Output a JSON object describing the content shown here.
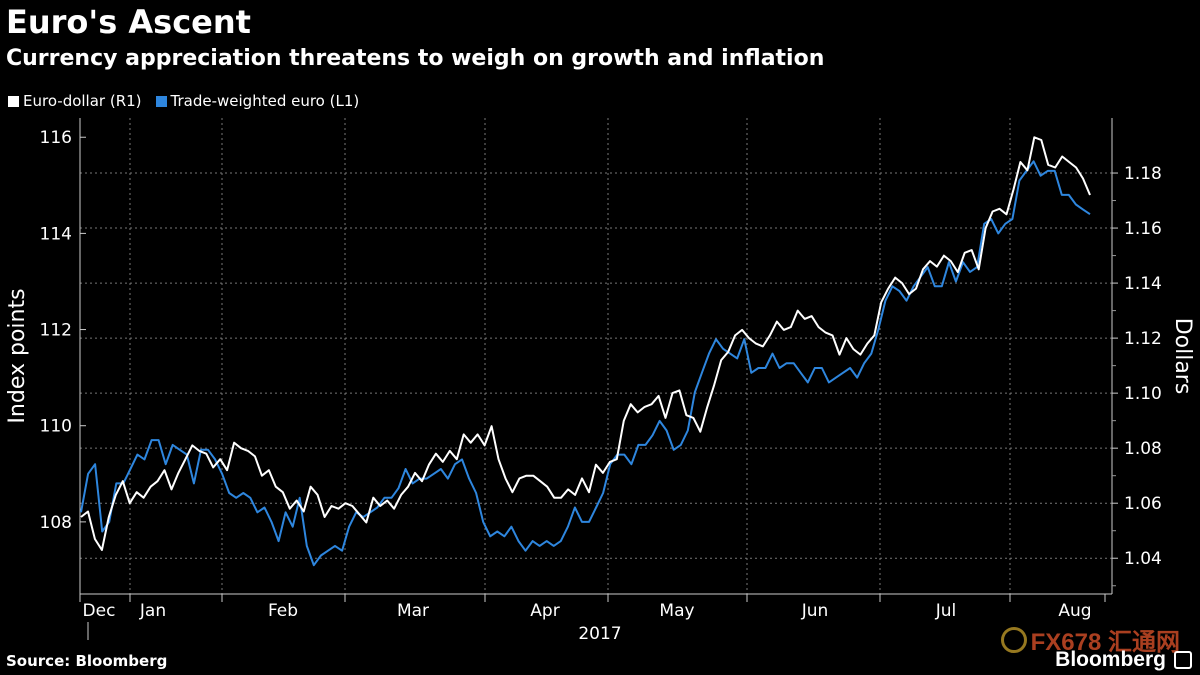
{
  "title": "Euro's Ascent",
  "subtitle": "Currency appreciation threatens to weigh on growth and inflation",
  "source": "Source: Bloomberg",
  "brand": "Bloomberg",
  "watermark": "FX678 汇通网",
  "colors": {
    "euro_dollar": "#ffffff",
    "trade_weighted": "#2e86de",
    "grid": "#777777",
    "background": "#000000"
  },
  "chart_data": {
    "type": "line",
    "xlabel": "2017",
    "ylabel_left": "Index points",
    "ylabel_right": "Dollars",
    "x_ticks": [
      "Dec",
      "Jan",
      "Feb",
      "Mar",
      "Apr",
      "May",
      "Jun",
      "Jul",
      "Aug"
    ],
    "y_left": {
      "ticks": [
        "108",
        "110",
        "112",
        "114",
        "116"
      ],
      "range": [
        106.5,
        116.4
      ]
    },
    "y_right": {
      "ticks": [
        "1.04",
        "1.06",
        "1.08",
        "1.10",
        "1.12",
        "1.14",
        "1.16",
        "1.18"
      ],
      "range": [
        1.027,
        1.2
      ]
    },
    "legend_position": "top-left",
    "grid": true,
    "series": [
      {
        "name": "Euro-dollar (R1)",
        "axis": "right",
        "values": [
          1.055,
          1.057,
          1.047,
          1.043,
          1.055,
          1.063,
          1.068,
          1.06,
          1.064,
          1.062,
          1.066,
          1.068,
          1.072,
          1.065,
          1.071,
          1.076,
          1.081,
          1.079,
          1.078,
          1.073,
          1.076,
          1.072,
          1.082,
          1.08,
          1.079,
          1.077,
          1.07,
          1.072,
          1.066,
          1.064,
          1.058,
          1.061,
          1.057,
          1.066,
          1.063,
          1.055,
          1.059,
          1.058,
          1.06,
          1.059,
          1.056,
          1.053,
          1.062,
          1.059,
          1.061,
          1.058,
          1.063,
          1.066,
          1.071,
          1.068,
          1.074,
          1.078,
          1.075,
          1.079,
          1.076,
          1.085,
          1.082,
          1.085,
          1.081,
          1.088,
          1.076,
          1.069,
          1.064,
          1.069,
          1.07,
          1.07,
          1.068,
          1.066,
          1.062,
          1.062,
          1.065,
          1.063,
          1.069,
          1.064,
          1.074,
          1.071,
          1.075,
          1.076,
          1.09,
          1.096,
          1.093,
          1.095,
          1.096,
          1.099,
          1.091,
          1.1,
          1.101,
          1.092,
          1.091,
          1.086,
          1.095,
          1.103,
          1.112,
          1.115,
          1.121,
          1.123,
          1.12,
          1.118,
          1.117,
          1.121,
          1.126,
          1.123,
          1.124,
          1.13,
          1.127,
          1.128,
          1.124,
          1.122,
          1.121,
          1.114,
          1.12,
          1.116,
          1.114,
          1.118,
          1.121,
          1.133,
          1.138,
          1.142,
          1.14,
          1.136,
          1.138,
          1.145,
          1.148,
          1.146,
          1.15,
          1.148,
          1.144,
          1.151,
          1.152,
          1.145,
          1.16,
          1.166,
          1.167,
          1.165,
          1.174,
          1.184,
          1.181,
          1.193,
          1.192,
          1.183,
          1.182,
          1.186,
          1.184,
          1.182,
          1.178,
          1.172
        ]
      },
      {
        "name": "Trade-weighted euro (L1)",
        "axis": "left",
        "values": [
          108.2,
          109.0,
          109.2,
          107.8,
          108.0,
          108.8,
          108.8,
          109.1,
          109.4,
          109.3,
          109.7,
          109.7,
          109.2,
          109.6,
          109.5,
          109.4,
          108.8,
          109.5,
          109.5,
          109.3,
          109.0,
          108.6,
          108.5,
          108.6,
          108.5,
          108.2,
          108.3,
          108.0,
          107.6,
          108.2,
          107.9,
          108.5,
          107.5,
          107.1,
          107.3,
          107.4,
          107.5,
          107.4,
          107.9,
          108.2,
          108.1,
          108.2,
          108.3,
          108.5,
          108.5,
          108.7,
          109.1,
          108.8,
          108.9,
          108.9,
          109.0,
          109.1,
          108.9,
          109.2,
          109.3,
          108.9,
          108.6,
          108.0,
          107.7,
          107.8,
          107.7,
          107.9,
          107.6,
          107.4,
          107.6,
          107.5,
          107.6,
          107.5,
          107.6,
          107.9,
          108.3,
          108.0,
          108.0,
          108.3,
          108.6,
          109.2,
          109.4,
          109.4,
          109.2,
          109.6,
          109.6,
          109.8,
          110.1,
          109.9,
          109.5,
          109.6,
          109.9,
          110.7,
          111.1,
          111.5,
          111.8,
          111.6,
          111.5,
          111.4,
          111.8,
          111.1,
          111.2,
          111.2,
          111.5,
          111.2,
          111.3,
          111.3,
          111.1,
          110.9,
          111.2,
          111.2,
          110.9,
          111.0,
          111.1,
          111.2,
          111.0,
          111.3,
          111.5,
          112.0,
          112.6,
          112.9,
          112.8,
          112.6,
          112.9,
          113.1,
          113.3,
          112.9,
          112.9,
          113.4,
          113.0,
          113.4,
          113.2,
          113.3,
          114.2,
          114.3,
          114.0,
          114.2,
          114.3,
          115.1,
          115.3,
          115.5,
          115.2,
          115.3,
          115.3,
          114.8,
          114.8,
          114.6,
          114.5,
          114.4
        ]
      }
    ]
  }
}
